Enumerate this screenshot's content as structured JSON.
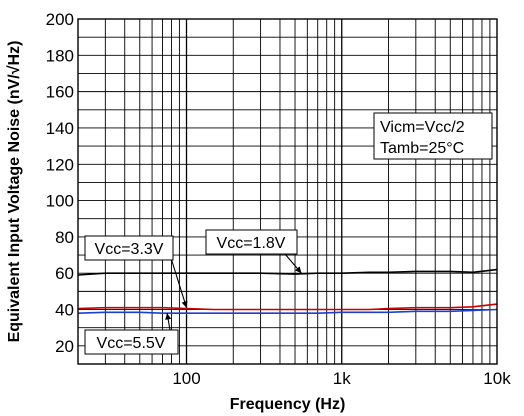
{
  "chart_data": {
    "type": "line",
    "xlabel": "Frequency (Hz)",
    "ylabel": "Equivalent Input Voltage Noise (nV/√Hz)",
    "x_scale": "log",
    "xlim": [
      20,
      10000
    ],
    "ylim": [
      10,
      200
    ],
    "grid": true,
    "x_ticks": [
      {
        "value": 100,
        "label": "100"
      },
      {
        "value": 1000,
        "label": "1k"
      },
      {
        "value": 10000,
        "label": "10k"
      }
    ],
    "y_ticks": [
      20,
      40,
      60,
      80,
      100,
      120,
      140,
      160,
      180,
      200
    ],
    "conditions": [
      "Vicm=Vcc/2",
      "Tamb=25°C"
    ],
    "series": [
      {
        "name": "Vcc=1.8V",
        "color": "#000000",
        "x": [
          20,
          30,
          50,
          70,
          100,
          150,
          200,
          300,
          500,
          700,
          1000,
          1500,
          2000,
          3000,
          5000,
          7000,
          10000
        ],
        "y": [
          59,
          60,
          60,
          60,
          60,
          60,
          60,
          60,
          59.5,
          60,
          60,
          60.5,
          60.5,
          61,
          61,
          60.5,
          62
        ]
      },
      {
        "name": "Vcc=3.3V",
        "color": "#cc0000",
        "x": [
          20,
          30,
          50,
          70,
          100,
          150,
          200,
          300,
          500,
          700,
          1000,
          1500,
          2000,
          3000,
          5000,
          7000,
          10000
        ],
        "y": [
          40.5,
          41,
          41,
          41,
          40.5,
          40,
          40,
          40,
          40,
          40,
          40,
          40,
          40.5,
          41,
          41,
          41.5,
          43
        ]
      },
      {
        "name": "Vcc=5.5V",
        "color": "#1f3fcf",
        "x": [
          20,
          30,
          50,
          70,
          100,
          150,
          200,
          300,
          500,
          700,
          1000,
          1500,
          2000,
          3000,
          5000,
          7000,
          10000
        ],
        "y": [
          38,
          38.5,
          38.5,
          38,
          38,
          38,
          38,
          38,
          38,
          38,
          38.5,
          38.5,
          38.5,
          39,
          39,
          39.5,
          40
        ]
      }
    ],
    "annotations": [
      {
        "series": "Vcc=3.3V",
        "label": "Vcc=3.3V",
        "point": [
          100,
          41
        ]
      },
      {
        "series": "Vcc=1.8V",
        "label": "Vcc=1.8V",
        "point": [
          550,
          60
        ]
      },
      {
        "series": "Vcc=5.5V",
        "label": "Vcc=5.5V",
        "point": [
          75,
          38
        ]
      }
    ]
  }
}
